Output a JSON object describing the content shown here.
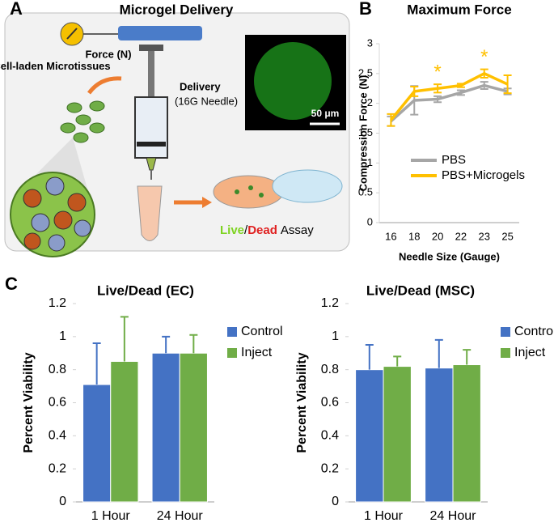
{
  "panel_labels": [
    "A",
    "B",
    "C"
  ],
  "diagram": {
    "title": "Microgel Delivery",
    "force": "Force (N)",
    "tissues": "Cell-laden Microtissues",
    "delivery": "Delivery",
    "needle": "(16G Needle)",
    "scale": "50 μm",
    "assay": {
      "live": "Live",
      "slash": "/",
      "dead": "Dead",
      "rest": "Assay"
    }
  },
  "chart_data": [
    {
      "type": "line",
      "title": "Maximum Force",
      "x_label": "Needle Size (Gauge)",
      "y_label": "Compression Force (N)",
      "categories": [
        "16",
        "18",
        "20",
        "22",
        "23",
        "25"
      ],
      "series": [
        {
          "name": "PBS",
          "color": "#a6a6a6",
          "values": [
            1.7,
            2.05,
            2.07,
            2.18,
            2.3,
            2.2
          ],
          "errors": [
            0.08,
            0.24,
            0.05,
            0.04,
            0.06,
            0.05
          ]
        },
        {
          "name": "PBS+Microgels",
          "color": "#ffc000",
          "values": [
            1.72,
            2.2,
            2.25,
            2.3,
            2.5,
            2.32
          ],
          "errors": [
            0.1,
            0.08,
            0.07,
            0.03,
            0.07,
            0.15
          ]
        }
      ],
      "annotations": [
        {
          "text": "*",
          "category": "20"
        },
        {
          "text": "*",
          "category": "23"
        }
      ],
      "ylim": [
        0,
        3
      ],
      "yticks": [
        0,
        0.5,
        1,
        1.5,
        2,
        2.5,
        3
      ],
      "legend": "left"
    },
    {
      "type": "bar",
      "title": "Live/Dead (EC)",
      "y_label": "Percent Viability",
      "categories": [
        "1 Hour",
        "24 Hour"
      ],
      "series": [
        {
          "name": "Control",
          "color": "#4472c4",
          "values": [
            0.71,
            0.9
          ],
          "errors": [
            0.25,
            0.1
          ]
        },
        {
          "name": "Inject",
          "color": "#70ad47",
          "values": [
            0.85,
            0.9
          ],
          "errors": [
            0.27,
            0.11
          ]
        }
      ],
      "ylim": [
        0,
        1.2
      ],
      "yticks": [
        0,
        0.2,
        0.4,
        0.6,
        0.8,
        1,
        1.2
      ],
      "legend": "right"
    },
    {
      "type": "bar",
      "title": "Live/Dead (MSC)",
      "y_label": "Percent Viability",
      "categories": [
        "1 Hour",
        "24 Hour"
      ],
      "series": [
        {
          "name": "Control",
          "color": "#4472c4",
          "values": [
            0.8,
            0.81
          ],
          "errors": [
            0.15,
            0.17
          ]
        },
        {
          "name": "Inject",
          "color": "#70ad47",
          "values": [
            0.82,
            0.83
          ],
          "errors": [
            0.06,
            0.09
          ]
        }
      ],
      "ylim": [
        0,
        1.2
      ],
      "yticks": [
        0,
        0.2,
        0.4,
        0.6,
        0.8,
        1,
        1.2
      ],
      "legend": "right"
    }
  ]
}
